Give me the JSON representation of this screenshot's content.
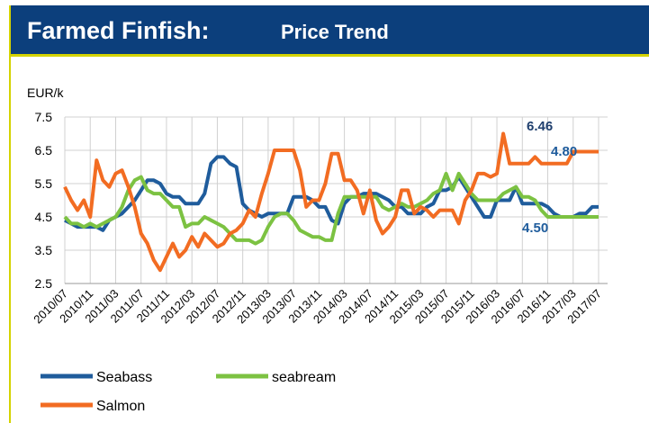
{
  "chart_data": {
    "type": "line",
    "title": "Farmed Finfish:",
    "subtitle": "Price Trend",
    "y_label": "EUR/k",
    "categories": [
      "2010/07",
      null,
      null,
      null,
      "2010/11",
      null,
      null,
      null,
      "2011/03",
      null,
      null,
      null,
      "2011/07",
      null,
      null,
      null,
      "2011/11",
      null,
      null,
      null,
      "2012/03",
      null,
      null,
      null,
      "2012/07",
      null,
      null,
      null,
      "2012/11",
      null,
      null,
      null,
      "2013/03",
      null,
      null,
      null,
      "2013/07",
      null,
      null,
      null,
      "2013/11",
      null,
      null,
      null,
      "2014/03",
      null,
      null,
      null,
      "2014/07",
      null,
      null,
      null,
      "2014/11",
      null,
      null,
      null,
      "2015/03",
      null,
      null,
      null,
      "2015/07",
      null,
      null,
      null,
      "2015/11",
      null,
      null,
      null,
      "2016/03",
      null,
      null,
      null,
      "2016/07",
      null,
      null,
      null,
      "2016/11",
      null,
      null,
      null,
      "2017/03",
      null,
      null,
      null,
      "2017/07"
    ],
    "series": [
      {
        "name": "Seabass",
        "color": "#1f5c9c",
        "values": [
          4.4,
          4.3,
          4.2,
          4.2,
          4.2,
          4.2,
          4.1,
          4.4,
          4.5,
          4.6,
          4.8,
          5.0,
          5.3,
          5.6,
          5.6,
          5.5,
          5.2,
          5.1,
          5.1,
          4.9,
          4.9,
          4.9,
          5.2,
          6.1,
          6.3,
          6.3,
          6.1,
          6.0,
          4.9,
          4.7,
          4.6,
          4.5,
          4.6,
          4.6,
          4.6,
          4.6,
          5.1,
          5.1,
          5.1,
          5.0,
          4.8,
          4.8,
          4.4,
          4.3,
          4.9,
          5.1,
          5.1,
          5.2,
          5.2,
          5.2,
          5.1,
          5.0,
          4.8,
          4.8,
          4.6,
          4.6,
          4.6,
          4.8,
          4.9,
          5.3,
          5.3,
          5.4,
          5.7,
          5.4,
          5.1,
          4.8,
          4.5,
          4.5,
          5.0,
          5.0,
          5.0,
          5.4,
          4.9,
          4.9,
          4.9,
          4.9,
          4.8,
          4.6,
          4.5,
          4.5,
          4.5,
          4.6,
          4.6,
          4.8,
          4.8
        ]
      },
      {
        "name": "seabream",
        "color": "#7cc242",
        "values": [
          4.5,
          4.3,
          4.3,
          4.2,
          4.3,
          4.2,
          4.3,
          4.4,
          4.5,
          4.8,
          5.3,
          5.6,
          5.7,
          5.3,
          5.2,
          5.2,
          5.0,
          4.8,
          4.8,
          4.2,
          4.3,
          4.3,
          4.5,
          4.4,
          4.3,
          4.2,
          4.0,
          3.8,
          3.8,
          3.8,
          3.7,
          3.8,
          4.2,
          4.5,
          4.6,
          4.6,
          4.4,
          4.1,
          4.0,
          3.9,
          3.9,
          3.8,
          3.8,
          4.6,
          5.1,
          5.1,
          5.1,
          5.1,
          5.1,
          5.1,
          4.8,
          4.7,
          4.8,
          4.9,
          4.8,
          4.8,
          4.9,
          5.0,
          5.2,
          5.3,
          5.8,
          5.3,
          5.8,
          5.5,
          5.2,
          5.0,
          5.0,
          5.0,
          5.0,
          5.2,
          5.3,
          5.4,
          5.1,
          5.1,
          5.0,
          4.7,
          4.5,
          4.5,
          4.5,
          4.5,
          4.5,
          4.5,
          4.5,
          4.5,
          4.5
        ]
      },
      {
        "name": "Salmon",
        "color": "#f26c22",
        "values": [
          5.4,
          5.0,
          4.7,
          5.0,
          4.5,
          6.2,
          5.6,
          5.4,
          5.8,
          5.9,
          5.4,
          4.8,
          4.0,
          3.7,
          3.2,
          2.9,
          3.3,
          3.7,
          3.3,
          3.5,
          3.9,
          3.6,
          4.0,
          3.8,
          3.6,
          3.7,
          4.0,
          4.1,
          4.3,
          4.7,
          4.5,
          5.2,
          5.8,
          6.5,
          6.5,
          6.5,
          6.5,
          5.9,
          4.8,
          5.0,
          5.0,
          5.5,
          6.4,
          6.4,
          5.6,
          5.6,
          5.3,
          4.6,
          5.3,
          4.4,
          4.0,
          4.2,
          4.5,
          5.3,
          5.3,
          4.6,
          4.8,
          4.7,
          4.5,
          4.7,
          4.7,
          4.7,
          4.3,
          5.0,
          5.3,
          5.8,
          5.8,
          5.7,
          5.8,
          7.0,
          6.1,
          6.1,
          6.1,
          6.1,
          6.3,
          6.1,
          6.1,
          6.1,
          6.1,
          6.1,
          6.46,
          6.46,
          6.46,
          6.46,
          6.46
        ]
      }
    ],
    "annotations": [
      "6.46",
      "4.80",
      "4.50"
    ],
    "ylim": [
      2.5,
      7.5
    ],
    "yticks": [
      2.5,
      3.5,
      4.5,
      5.5,
      6.5,
      7.5
    ],
    "grid": true
  }
}
